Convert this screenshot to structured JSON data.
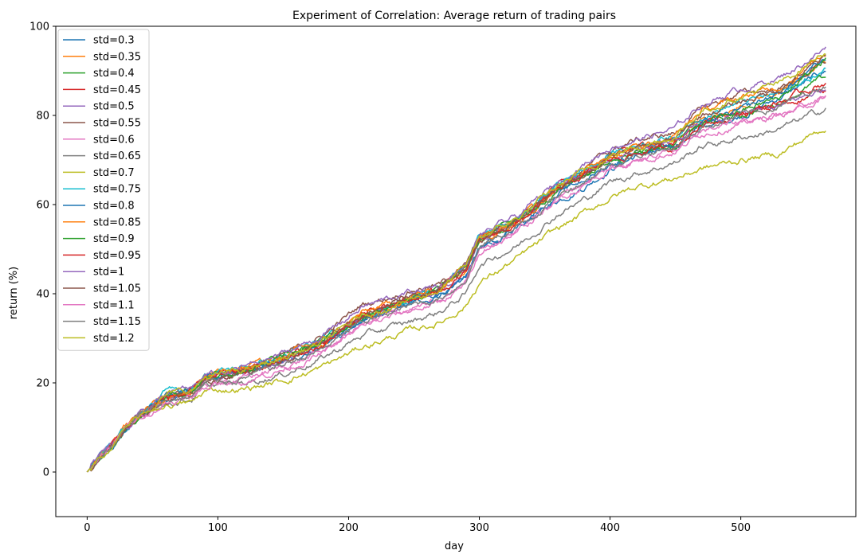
{
  "chart_data": {
    "type": "line",
    "title": "Experiment of Correlation: Average return of trading pairs",
    "xlabel": "day",
    "ylabel": "return (%)",
    "xlim": [
      -24,
      588
    ],
    "ylim": [
      -10,
      100
    ],
    "xticks": [
      0,
      100,
      200,
      300,
      400,
      500
    ],
    "yticks": [
      0,
      20,
      40,
      60,
      80,
      100
    ],
    "grid": false,
    "legend_position": "upper-left",
    "anchor_days": [
      0,
      10,
      20,
      30,
      40,
      50,
      60,
      70,
      80,
      90,
      100,
      120,
      150,
      180,
      210,
      250,
      270,
      290,
      300,
      330,
      360,
      380,
      400,
      420,
      450,
      470,
      500,
      530,
      565
    ],
    "series": [
      {
        "name": "std=0.3",
        "color": "#1f77b4",
        "values": [
          0,
          3.5,
          6.5,
          10,
          12.5,
          14.5,
          16.5,
          17.5,
          18.0,
          21.0,
          21.5,
          22.5,
          25.0,
          28.0,
          34.0,
          38.5,
          40.0,
          44.0,
          49.5,
          55.0,
          61.0,
          64.0,
          68.0,
          71.0,
          73.0,
          77.0,
          80.0,
          84.0,
          90.0
        ]
      },
      {
        "name": "std=0.35",
        "color": "#ff7f0e",
        "values": [
          0,
          3.6,
          6.6,
          10,
          12.6,
          14.8,
          17.0,
          17.5,
          18.2,
          21.5,
          22.0,
          23.0,
          25.8,
          29.0,
          35.0,
          39.0,
          41.0,
          46.0,
          52.0,
          56.5,
          63.5,
          67.0,
          70.5,
          72.5,
          74.5,
          79.0,
          82.0,
          85.0,
          92.0
        ]
      },
      {
        "name": "std=0.4",
        "color": "#2ca02c",
        "values": [
          0,
          3.6,
          6.6,
          10,
          12.6,
          14.8,
          17.0,
          17.6,
          18.3,
          21.5,
          22.0,
          23.0,
          25.5,
          29.0,
          35.0,
          39.0,
          41.0,
          46.0,
          52.5,
          56.5,
          63.5,
          67.0,
          70.5,
          72.0,
          74.0,
          78.0,
          80.0,
          83.0,
          88.5
        ]
      },
      {
        "name": "std=0.45",
        "color": "#d62728",
        "values": [
          0,
          3.6,
          6.6,
          10,
          12.6,
          14.6,
          16.8,
          17.5,
          18.0,
          21.0,
          21.7,
          22.8,
          25.5,
          29.0,
          35.5,
          39.5,
          41.0,
          46.5,
          53.0,
          57.0,
          64.0,
          67.5,
          71.0,
          72.5,
          74.0,
          79.0,
          80.0,
          82.0,
          86.0
        ]
      },
      {
        "name": "std=0.5",
        "color": "#9467bd",
        "values": [
          0,
          3.6,
          6.6,
          10,
          12.6,
          14.6,
          16.6,
          17.2,
          17.8,
          20.5,
          21.0,
          22.0,
          24.5,
          28.0,
          34.5,
          38.5,
          40.0,
          45.0,
          51.5,
          56.0,
          63.0,
          66.5,
          70.0,
          72.5,
          74.0,
          78.0,
          80.0,
          82.0,
          86.0
        ]
      },
      {
        "name": "std=0.55",
        "color": "#8c564b",
        "values": [
          0,
          3.6,
          6.6,
          10,
          12.6,
          14.5,
          16.5,
          17.0,
          17.5,
          20.5,
          21.0,
          22.8,
          26.0,
          30.5,
          37.5,
          41.0,
          42.0,
          46.5,
          52.5,
          57.0,
          65.0,
          68.0,
          72.0,
          74.5,
          76.0,
          81.5,
          85.0,
          86.0,
          92.0
        ]
      },
      {
        "name": "std=0.6",
        "color": "#e377c2",
        "values": [
          0,
          3.5,
          6.5,
          10,
          12.5,
          14.3,
          16.0,
          16.5,
          17.0,
          19.5,
          20.0,
          21.0,
          23.5,
          27.0,
          33.0,
          37.0,
          38.0,
          42.5,
          49.5,
          54.5,
          61.5,
          65.0,
          68.0,
          70.0,
          72.0,
          76.0,
          78.0,
          80.0,
          84.0
        ]
      },
      {
        "name": "std=0.65",
        "color": "#7f7f7f",
        "values": [
          0,
          3.5,
          6.5,
          10,
          12.3,
          14.0,
          15.5,
          16.0,
          16.5,
          19.0,
          19.5,
          20.0,
          22.0,
          25.5,
          30.5,
          34.0,
          36.0,
          40.0,
          46.5,
          51.0,
          58.0,
          61.0,
          65.0,
          67.0,
          69.5,
          73.0,
          75.0,
          77.0,
          81.5
        ]
      },
      {
        "name": "std=0.7",
        "color": "#bcbd22",
        "values": [
          0,
          3.4,
          6.4,
          10,
          12.0,
          13.5,
          15.0,
          15.3,
          15.5,
          18.0,
          18.5,
          18.5,
          20.5,
          23.5,
          28.0,
          32.0,
          33.5,
          37.5,
          42.5,
          48.0,
          54.5,
          58.0,
          61.5,
          64.0,
          66.0,
          68.0,
          70.0,
          71.5,
          77.5
        ]
      },
      {
        "name": "std=0.75",
        "color": "#17becf",
        "values": [
          0,
          3.6,
          6.6,
          10,
          12.8,
          15.3,
          18.0,
          18.2,
          18.8,
          22.0,
          22.5,
          23.5,
          26.0,
          29.5,
          35.0,
          39.0,
          41.0,
          46.5,
          53.0,
          57.0,
          64.5,
          68.0,
          71.5,
          73.5,
          75.5,
          80.0,
          83.0,
          85.0,
          90.0
        ]
      },
      {
        "name": "std=0.8",
        "color": "#1f77b4",
        "values": [
          0,
          3.6,
          6.6,
          10,
          12.6,
          14.7,
          16.8,
          17.5,
          18.0,
          21.0,
          21.7,
          22.5,
          25.0,
          28.5,
          34.0,
          38.0,
          40.0,
          44.0,
          50.0,
          55.5,
          62.0,
          65.5,
          69.0,
          71.5,
          73.5,
          78.0,
          81.0,
          85.0,
          92.5
        ]
      },
      {
        "name": "std=0.85",
        "color": "#ff7f0e",
        "values": [
          0,
          3.6,
          6.6,
          10,
          12.7,
          14.9,
          17.2,
          17.8,
          18.3,
          21.5,
          22.0,
          23.0,
          26.0,
          29.5,
          35.5,
          39.5,
          41.0,
          46.0,
          52.5,
          57.0,
          64.0,
          67.5,
          71.5,
          73.0,
          75.5,
          81.0,
          84.0,
          86.5,
          94.0
        ]
      },
      {
        "name": "std=0.9",
        "color": "#2ca02c",
        "values": [
          0,
          3.6,
          6.6,
          10,
          12.6,
          14.8,
          17.0,
          17.5,
          18.2,
          21.3,
          21.8,
          23.0,
          25.8,
          29.0,
          35.0,
          39.0,
          41.0,
          45.5,
          52.0,
          56.5,
          63.5,
          66.5,
          70.0,
          71.5,
          73.0,
          78.0,
          81.0,
          84.0,
          92.5
        ]
      },
      {
        "name": "std=0.95",
        "color": "#d62728",
        "values": [
          0,
          3.6,
          6.6,
          10,
          12.5,
          14.6,
          16.7,
          17.2,
          17.8,
          20.8,
          21.3,
          22.3,
          25.0,
          28.5,
          34.5,
          38.5,
          40.5,
          45.0,
          51.5,
          56.0,
          63.0,
          66.5,
          70.0,
          71.5,
          73.0,
          78.0,
          80.5,
          83.0,
          87.5
        ]
      },
      {
        "name": "std=1",
        "color": "#9467bd",
        "values": [
          0,
          3.6,
          6.6,
          10,
          12.8,
          15.0,
          17.5,
          18.0,
          18.5,
          21.5,
          22.0,
          23.5,
          26.5,
          30.5,
          37.0,
          40.5,
          42.0,
          46.5,
          53.0,
          57.5,
          65.0,
          69.0,
          73.0,
          74.5,
          77.0,
          82.5,
          86.0,
          88.5,
          95.0
        ]
      },
      {
        "name": "std=1.05",
        "color": "#8c564b",
        "values": [
          0,
          3.6,
          6.6,
          10,
          12.5,
          14.4,
          16.4,
          16.9,
          17.4,
          20.3,
          20.8,
          22.0,
          25.0,
          29.0,
          35.5,
          39.5,
          41.0,
          45.5,
          52.0,
          56.5,
          63.5,
          67.0,
          70.5,
          72.5,
          74.5,
          80.0,
          83.0,
          86.0,
          93.0
        ]
      },
      {
        "name": "std=1.1",
        "color": "#e377c2",
        "values": [
          0,
          3.5,
          6.5,
          10,
          12.2,
          13.9,
          15.7,
          16.2,
          16.7,
          19.3,
          19.8,
          20.5,
          23.0,
          26.5,
          32.5,
          36.5,
          38.0,
          42.5,
          49.5,
          54.0,
          61.0,
          64.5,
          68.0,
          70.0,
          72.0,
          76.5,
          78.5,
          80.5,
          84.5
        ]
      },
      {
        "name": "std=1.15",
        "color": "#7f7f7f",
        "values": [
          0,
          3.5,
          6.5,
          10,
          12.4,
          14.2,
          16.0,
          16.5,
          17.0,
          19.8,
          20.2,
          21.2,
          24.0,
          27.5,
          33.5,
          37.5,
          39.0,
          43.5,
          50.5,
          55.0,
          62.0,
          65.5,
          69.0,
          71.0,
          73.0,
          77.5,
          80.0,
          82.0,
          87.0
        ]
      },
      {
        "name": "std=1.2",
        "color": "#bcbd22",
        "values": [
          0,
          3.6,
          6.6,
          10,
          12.7,
          15.0,
          17.3,
          17.8,
          18.3,
          21.2,
          21.7,
          22.7,
          25.5,
          29.0,
          35.0,
          39.0,
          41.0,
          46.0,
          52.5,
          57.0,
          64.0,
          67.5,
          71.0,
          73.0,
          75.5,
          81.0,
          84.5,
          87.0,
          94.5
        ]
      }
    ]
  }
}
